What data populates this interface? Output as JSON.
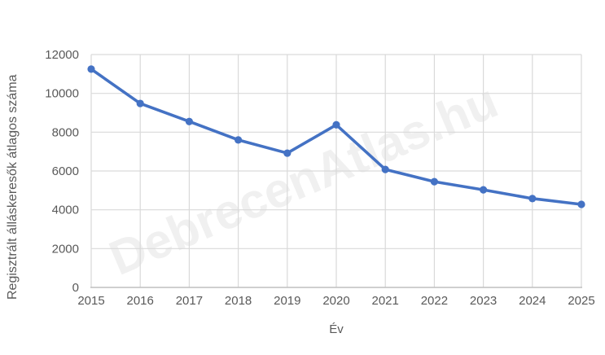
{
  "watermark": {
    "text": "DebrecenAtlas.hu",
    "color": "#F0F0F0"
  },
  "chart_data": {
    "type": "line",
    "title": "",
    "categories": [
      "2015",
      "2016",
      "2017",
      "2018",
      "2019",
      "2020",
      "2021",
      "2022",
      "2023",
      "2024",
      "2025"
    ],
    "values": [
      11250,
      9480,
      8550,
      7600,
      6920,
      8380,
      6080,
      5450,
      5030,
      4580,
      4280
    ],
    "series_name": "Regisztrált álláskeresők átlagos száma",
    "xlabel": "Év",
    "ylabel": "Regisztrált álláskeresők átlagos száma",
    "ylim": [
      0,
      12000
    ],
    "ytick_step": 2000,
    "grid": true,
    "legend": false,
    "line_color": "#4472C4",
    "marker_color": "#4472C4",
    "gridline_color": "#D9D9D9",
    "axis_color": "#BFBFBF",
    "label_color": "#595959"
  }
}
